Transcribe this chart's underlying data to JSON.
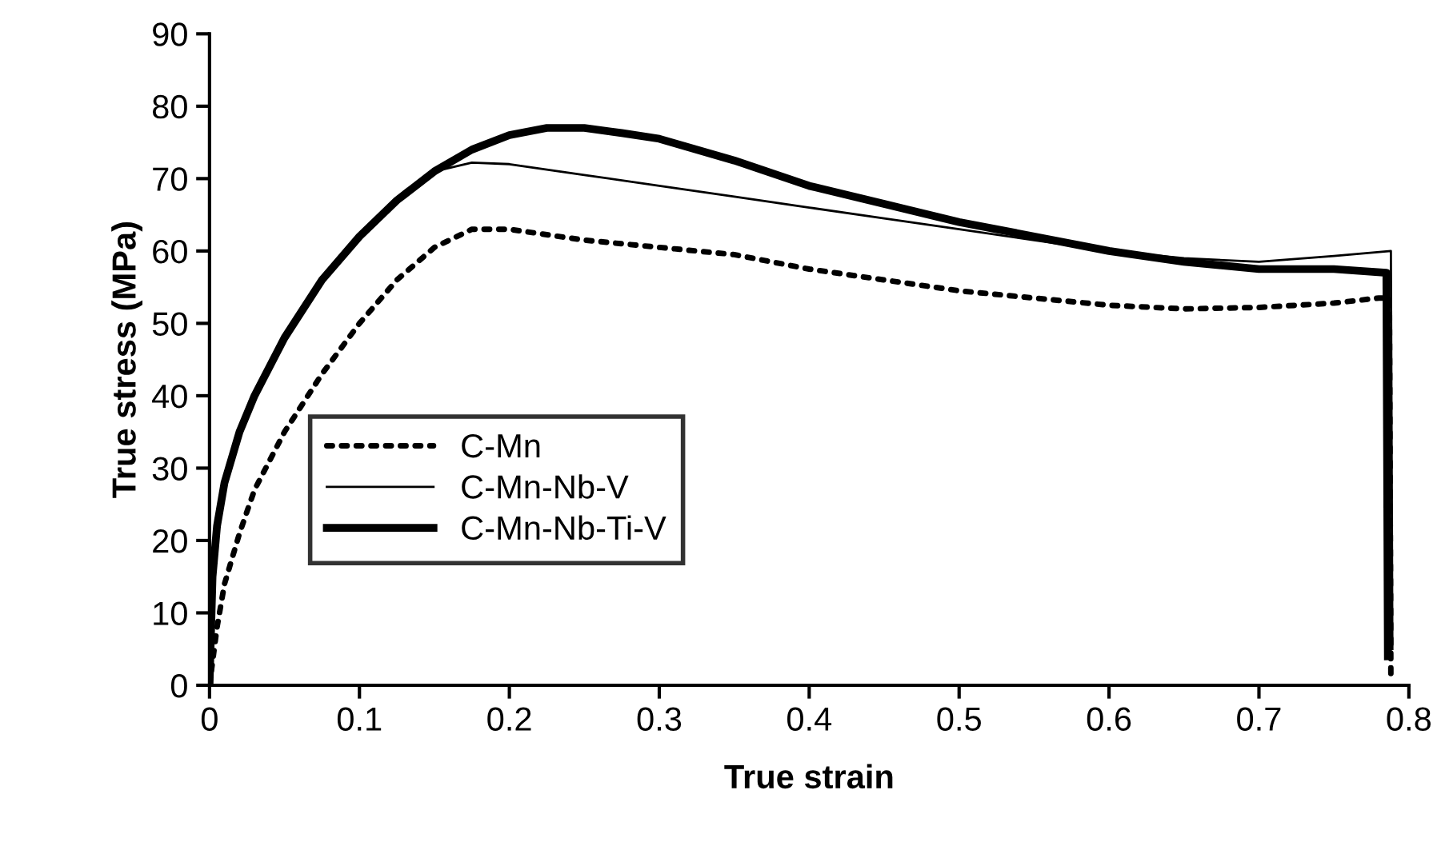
{
  "chart_data": {
    "type": "line",
    "xlabel": "True strain",
    "ylabel": "True stress (MPa)",
    "xlim": [
      0,
      0.8
    ],
    "xticks": [
      0,
      0.1,
      0.2,
      0.3,
      0.4,
      0.5,
      0.6,
      0.7,
      0.8
    ],
    "ylim": [
      0,
      90
    ],
    "yticks": [
      0,
      10,
      20,
      30,
      40,
      50,
      60,
      70,
      80,
      90
    ],
    "grid": false,
    "legend": "left",
    "marker": "none",
    "series": [
      {
        "name": "C-Mn",
        "color": "#000000",
        "line_style": "dotted",
        "x": [
          0,
          0.005,
          0.01,
          0.02,
          0.03,
          0.05,
          0.075,
          0.1,
          0.125,
          0.15,
          0.175,
          0.2,
          0.25,
          0.3,
          0.35,
          0.4,
          0.45,
          0.5,
          0.55,
          0.6,
          0.65,
          0.7,
          0.75,
          0.78,
          0.787,
          0.788
        ],
        "values": [
          0,
          8,
          14,
          21,
          27,
          35,
          43,
          50,
          56,
          60.5,
          63,
          63,
          61.5,
          60.5,
          59.5,
          57.5,
          56,
          54.5,
          53.5,
          52.5,
          52,
          52.2,
          52.8,
          53.5,
          53.5,
          1
        ]
      },
      {
        "name": "C-Mn-Nb-V",
        "color": "#000000",
        "line_style": "solid",
        "x": [
          0,
          0.002,
          0.005,
          0.01,
          0.02,
          0.03,
          0.05,
          0.075,
          0.1,
          0.125,
          0.15,
          0.175,
          0.2,
          0.25,
          0.3,
          0.35,
          0.4,
          0.45,
          0.5,
          0.55,
          0.6,
          0.65,
          0.7,
          0.75,
          0.788,
          0.789
        ],
        "values": [
          0,
          15,
          22,
          28,
          35,
          40,
          48,
          56,
          62,
          67,
          71,
          72.2,
          72,
          70.5,
          69,
          67.5,
          66,
          64.5,
          63,
          61.5,
          60,
          59,
          58.5,
          59.3,
          60,
          5
        ]
      },
      {
        "name": "C-Mn-Nb-Ti-V",
        "color": "#000000",
        "line_style": "solid",
        "x": [
          0,
          0.002,
          0.005,
          0.01,
          0.02,
          0.03,
          0.05,
          0.075,
          0.1,
          0.125,
          0.15,
          0.175,
          0.2,
          0.225,
          0.25,
          0.275,
          0.3,
          0.35,
          0.4,
          0.45,
          0.5,
          0.55,
          0.6,
          0.65,
          0.7,
          0.75,
          0.785,
          0.786
        ],
        "values": [
          0,
          15,
          22,
          28,
          35,
          40,
          48,
          56,
          62,
          67,
          71,
          74,
          76,
          77,
          77,
          76.3,
          75.5,
          72.5,
          69,
          66.5,
          64,
          62,
          60,
          58.5,
          57.5,
          57.5,
          57,
          4
        ]
      }
    ]
  }
}
